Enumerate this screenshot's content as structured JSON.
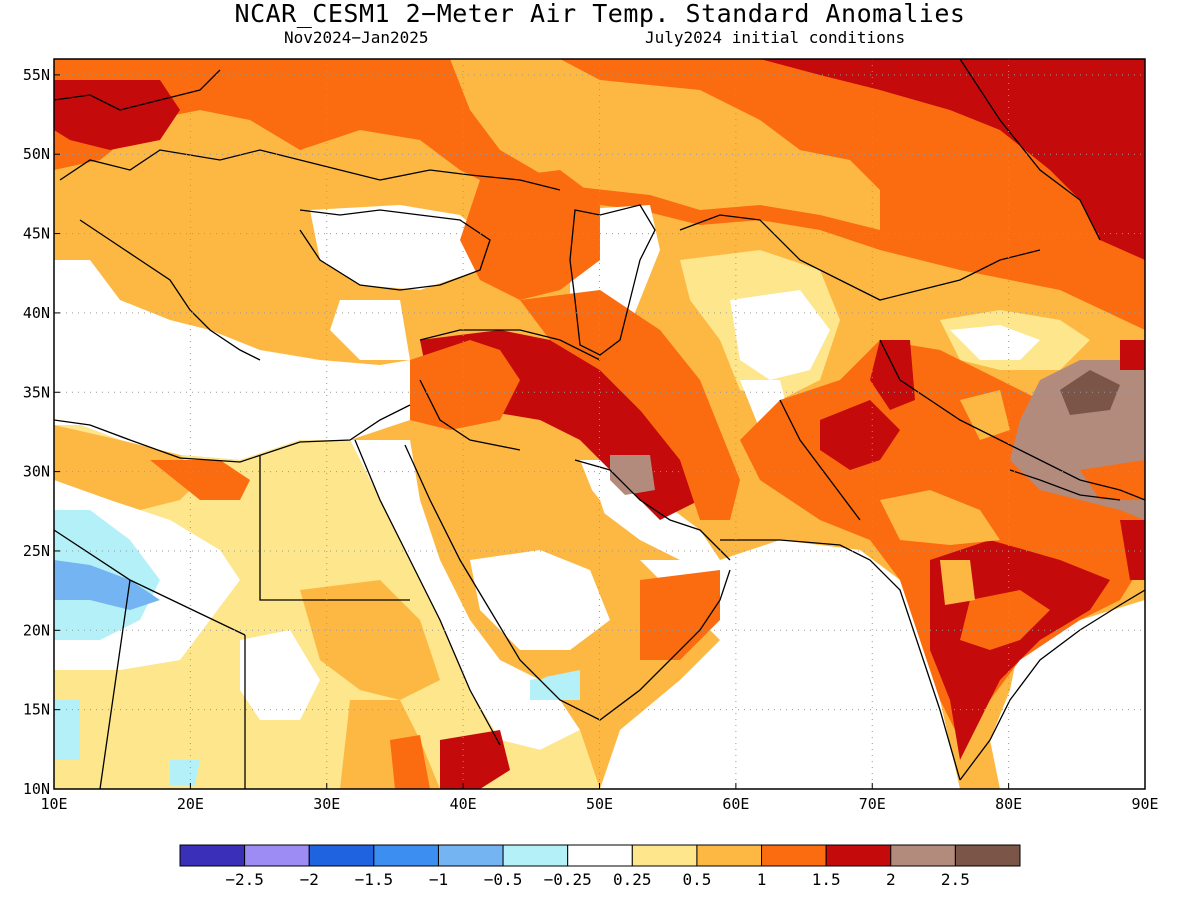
{
  "title": "NCAR_CESM1 2−Meter Air Temp. Standard Anomalies",
  "subtitle_left": "Nov2024−Jan2025",
  "subtitle_right": "July2024 initial conditions",
  "map": {
    "lon_range": [
      10,
      90
    ],
    "lat_range": [
      10,
      56
    ],
    "lon_ticks": [
      "10E",
      "20E",
      "30E",
      "40E",
      "50E",
      "60E",
      "70E",
      "80E",
      "90E"
    ],
    "lat_ticks": [
      "55N",
      "50N",
      "45N",
      "40N",
      "35N",
      "30N",
      "25N",
      "20N",
      "15N",
      "10N"
    ],
    "lon_tick_values": [
      10,
      20,
      30,
      40,
      50,
      60,
      70,
      80,
      90
    ],
    "lat_tick_values": [
      55,
      50,
      45,
      40,
      35,
      30,
      25,
      20,
      15,
      10
    ]
  },
  "colorbar": {
    "colors": [
      "#3a2fb8",
      "#9e8cf5",
      "#1f63e0",
      "#3c8ff0",
      "#74b4f2",
      "#b4f0f8",
      "#ffffff",
      "#fde68b",
      "#fdb844",
      "#fb6b0f",
      "#c40a0a",
      "#b38b7d",
      "#7a5548"
    ],
    "labels": [
      "−2.5",
      "−2",
      "−1.5",
      "−1",
      "−0.5",
      "−0.25",
      "0.25",
      "0.5",
      "1",
      "1.5",
      "2",
      "2.5"
    ]
  }
}
